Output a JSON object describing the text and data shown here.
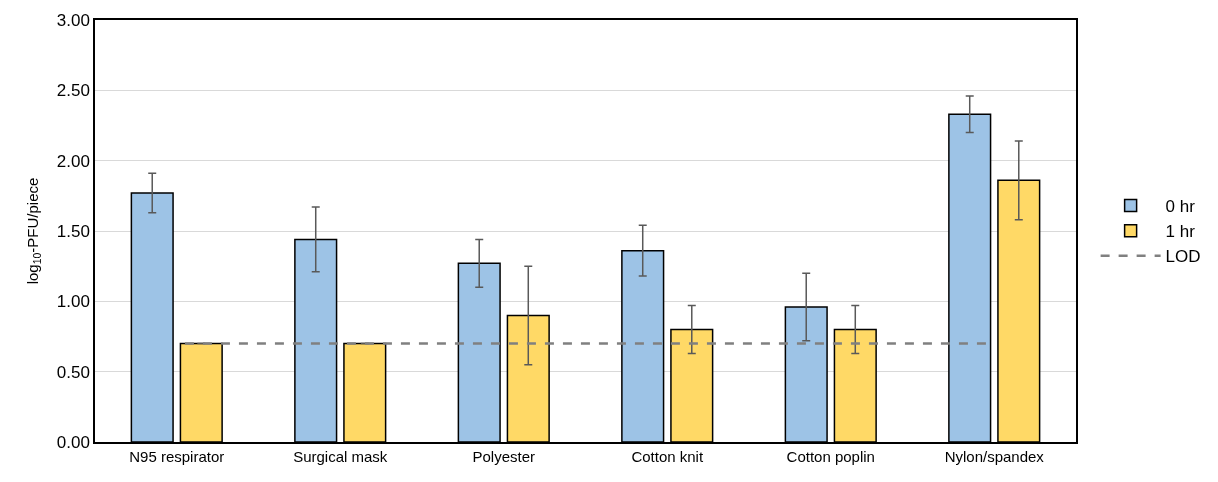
{
  "chart_data": {
    "type": "bar",
    "ylabel": "log$_{10}$-PFU/piece",
    "categories": [
      "N95 respirator",
      "Surgical mask",
      "Polyester",
      "Cotton knit",
      "Cotton poplin",
      "Nylon/spandex"
    ],
    "series": [
      {
        "name": "0 hr",
        "color": "#9dc3e6",
        "values": [
          1.77,
          1.44,
          1.27,
          1.36,
          0.96,
          2.33
        ],
        "errors": [
          0.14,
          0.23,
          0.17,
          0.18,
          0.24,
          0.13
        ]
      },
      {
        "name": "1 hr",
        "color": "#ffd966",
        "values": [
          0.7,
          0.7,
          0.9,
          0.8,
          0.8,
          1.86
        ],
        "errors": [
          null,
          null,
          0.35,
          0.17,
          0.17,
          0.28
        ]
      }
    ],
    "ref_lines": [
      {
        "axis": "y",
        "value": 0.7,
        "label": "LOD",
        "color": "#808080",
        "line_style": "dashed"
      }
    ],
    "ylim": [
      0,
      3
    ],
    "yticks": [
      {
        "value": 0,
        "label": "0.00"
      },
      {
        "value": 0.5,
        "label": "0.50"
      },
      {
        "value": 1,
        "label": "1.00"
      },
      {
        "value": 1.5,
        "label": "1.50"
      },
      {
        "value": 2,
        "label": "2.00"
      },
      {
        "value": 2.5,
        "label": "2.50"
      },
      {
        "value": 3,
        "label": "3.00"
      }
    ],
    "grid": "y",
    "legend": "right"
  }
}
